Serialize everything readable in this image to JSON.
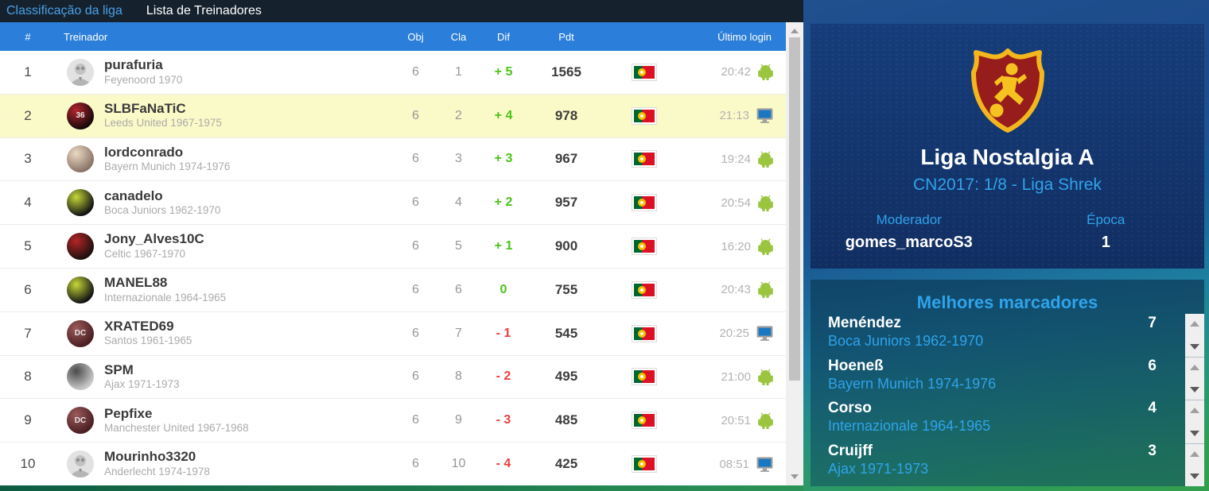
{
  "colors": {
    "header_blue": "#2b7ed9",
    "nav_active_blue": "#4aa0e8",
    "highlight_yellow": "#fafac8",
    "positive_green": "#49c414",
    "negative_red": "#e84040",
    "accent_blue": "#2fa3ea",
    "android_green": "#9bc53f",
    "monitor_blue": "#1a78c2",
    "monitor_frame_gray": "#9e9e9e",
    "flag_green": "#00662f",
    "flag_red": "#dd1125",
    "shield_red": "#971c1c",
    "shield_gold": "#f3b71e"
  },
  "nav": {
    "tabs": [
      {
        "label": "Classificação da liga",
        "active": true
      },
      {
        "label": "Lista de Treinadores",
        "active": false
      }
    ]
  },
  "table": {
    "headers": {
      "rank": "#",
      "trainer": "Treinador",
      "obj": "Obj",
      "cla": "Cla",
      "dif": "Dif",
      "pdt": "Pdt",
      "last_login": "Último login"
    },
    "rows": [
      {
        "rank": "1",
        "name": "purafuria",
        "club": "Feyenoord 1970",
        "obj": "6",
        "cla": "1",
        "dif": "+ 5",
        "pdt": "1565",
        "flag": "portugal",
        "time": "20:42",
        "device": "android",
        "highlight": false,
        "avatar": {
          "style": "person"
        }
      },
      {
        "rank": "2",
        "name": "SLBFaNaTiC",
        "club": "Leeds United 1967-1975",
        "obj": "6",
        "cla": "2",
        "dif": "+ 4",
        "pdt": "978",
        "flag": "portugal",
        "time": "21:13",
        "device": "desktop",
        "highlight": true,
        "avatar": {
          "style": "badge",
          "bg": "#16090b",
          "accent": "#b5252c",
          "label": "36"
        }
      },
      {
        "rank": "3",
        "name": "lordconrado",
        "club": "Bayern Munich 1974-1976",
        "obj": "6",
        "cla": "3",
        "dif": "+ 3",
        "pdt": "967",
        "flag": "portugal",
        "time": "19:24",
        "device": "android",
        "highlight": false,
        "avatar": {
          "style": "badge",
          "bg": "#8a7468",
          "accent": "#ead9c2",
          "label": ""
        }
      },
      {
        "rank": "4",
        "name": "canadelo",
        "club": "Boca Juniors 1962-1970",
        "obj": "6",
        "cla": "4",
        "dif": "+ 2",
        "pdt": "957",
        "flag": "portugal",
        "time": "20:54",
        "device": "android",
        "highlight": false,
        "avatar": {
          "style": "badge",
          "bg": "#141414",
          "accent": "#c6d838",
          "label": ""
        }
      },
      {
        "rank": "5",
        "name": "Jony_Alves10C",
        "club": "Celtic 1967-1970",
        "obj": "6",
        "cla": "5",
        "dif": "+ 1",
        "pdt": "900",
        "flag": "portugal",
        "time": "16:20",
        "device": "android",
        "highlight": false,
        "avatar": {
          "style": "badge",
          "bg": "#201010",
          "accent": "#b32525",
          "label": ""
        }
      },
      {
        "rank": "6",
        "name": "MANEL88",
        "club": "Internazionale 1964-1965",
        "obj": "6",
        "cla": "6",
        "dif": "0",
        "pdt": "755",
        "flag": "portugal",
        "time": "20:43",
        "device": "android",
        "highlight": false,
        "avatar": {
          "style": "badge",
          "bg": "#141414",
          "accent": "#c6d838",
          "label": ""
        }
      },
      {
        "rank": "7",
        "name": "XRATED69",
        "club": "Santos 1961-1965",
        "obj": "6",
        "cla": "7",
        "dif": "- 1",
        "pdt": "545",
        "flag": "portugal",
        "time": "20:25",
        "device": "desktop",
        "highlight": false,
        "avatar": {
          "style": "badge",
          "bg": "#4a1f22",
          "accent": "#9b5a5a",
          "label": "DC"
        }
      },
      {
        "rank": "8",
        "name": "SPM",
        "club": "Ajax 1971-1973",
        "obj": "6",
        "cla": "8",
        "dif": "- 2",
        "pdt": "495",
        "flag": "portugal",
        "time": "21:00",
        "device": "android",
        "highlight": false,
        "avatar": {
          "style": "badge",
          "bg": "#c9c9c9",
          "accent": "#4a4a4a",
          "label": ""
        }
      },
      {
        "rank": "9",
        "name": "Pepfixe",
        "club": "Manchester United 1967-1968",
        "obj": "6",
        "cla": "9",
        "dif": "- 3",
        "pdt": "485",
        "flag": "portugal",
        "time": "20:51",
        "device": "android",
        "highlight": false,
        "avatar": {
          "style": "badge",
          "bg": "#4a1f22",
          "accent": "#9b5a5a",
          "label": "DC"
        }
      },
      {
        "rank": "10",
        "name": "Mourinho3320",
        "club": "Anderlecht 1974-1978",
        "obj": "6",
        "cla": "10",
        "dif": "- 4",
        "pdt": "425",
        "flag": "portugal",
        "time": "08:51",
        "device": "desktop",
        "highlight": false,
        "avatar": {
          "style": "person"
        }
      }
    ]
  },
  "league": {
    "title": "Liga Nostalgia A",
    "competition": "CN2017: 1/8 - Liga Shrek",
    "moderator_label": "Moderador",
    "moderator_name": "gomes_marcoS3",
    "season_label": "Época",
    "season_value": "1"
  },
  "top_scorers": {
    "title": "Melhores marcadores",
    "players": [
      {
        "name": "Menéndez",
        "club": "Boca Juniors 1962-1970",
        "goals": "7"
      },
      {
        "name": "Hoeneß",
        "club": "Bayern Munich 1974-1976",
        "goals": "6"
      },
      {
        "name": "Corso",
        "club": "Internazionale 1964-1965",
        "goals": "4"
      },
      {
        "name": "Cruijff",
        "club": "Ajax 1971-1973",
        "goals": "3"
      }
    ]
  }
}
